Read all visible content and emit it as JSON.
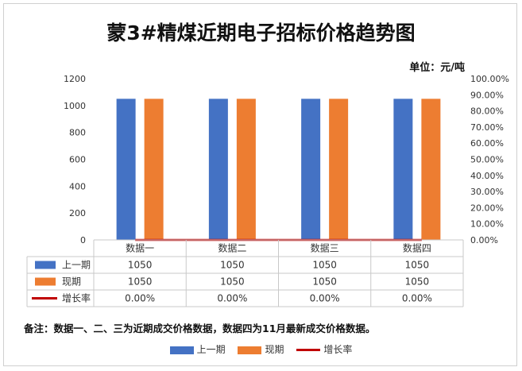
{
  "chart_data": {
    "type": "bar",
    "title": "蒙3#精煤近期电子招标价格趋势图",
    "unit_label": "单位：元/吨",
    "categories": [
      "数据一",
      "数据二",
      "数据三",
      "数据四"
    ],
    "series": [
      {
        "name": "上一期",
        "type": "bar",
        "axis": "left",
        "color": "#4472C4",
        "values": [
          1050,
          1050,
          1050,
          1050
        ],
        "labels": [
          "1050",
          "1050",
          "1050",
          "1050"
        ]
      },
      {
        "name": "现期",
        "type": "bar",
        "axis": "left",
        "color": "#ED7D31",
        "values": [
          1050,
          1050,
          1050,
          1050
        ],
        "labels": [
          "1050",
          "1050",
          "1050",
          "1050"
        ]
      },
      {
        "name": "增长率",
        "type": "line",
        "axis": "right",
        "color": "#C00000",
        "values": [
          0,
          0,
          0,
          0
        ],
        "labels": [
          "0.00%",
          "0.00%",
          "0.00%",
          "0.00%"
        ]
      }
    ],
    "ylim_left": [
      0,
      1200
    ],
    "yticks_left": [
      "0",
      "200",
      "400",
      "600",
      "800",
      "1000",
      "1200"
    ],
    "ylim_right": [
      0,
      100
    ],
    "yticks_right": [
      "0.00%",
      "10.00%",
      "20.00%",
      "30.00%",
      "40.00%",
      "50.00%",
      "60.00%",
      "70.00%",
      "80.00%",
      "90.00%",
      "100.00%"
    ],
    "grid": false,
    "legend": "bottom",
    "data_table": true
  },
  "note": "备注：数据一、二、三为近期成交价格数据，数据四为11月最新成交价格数据。"
}
